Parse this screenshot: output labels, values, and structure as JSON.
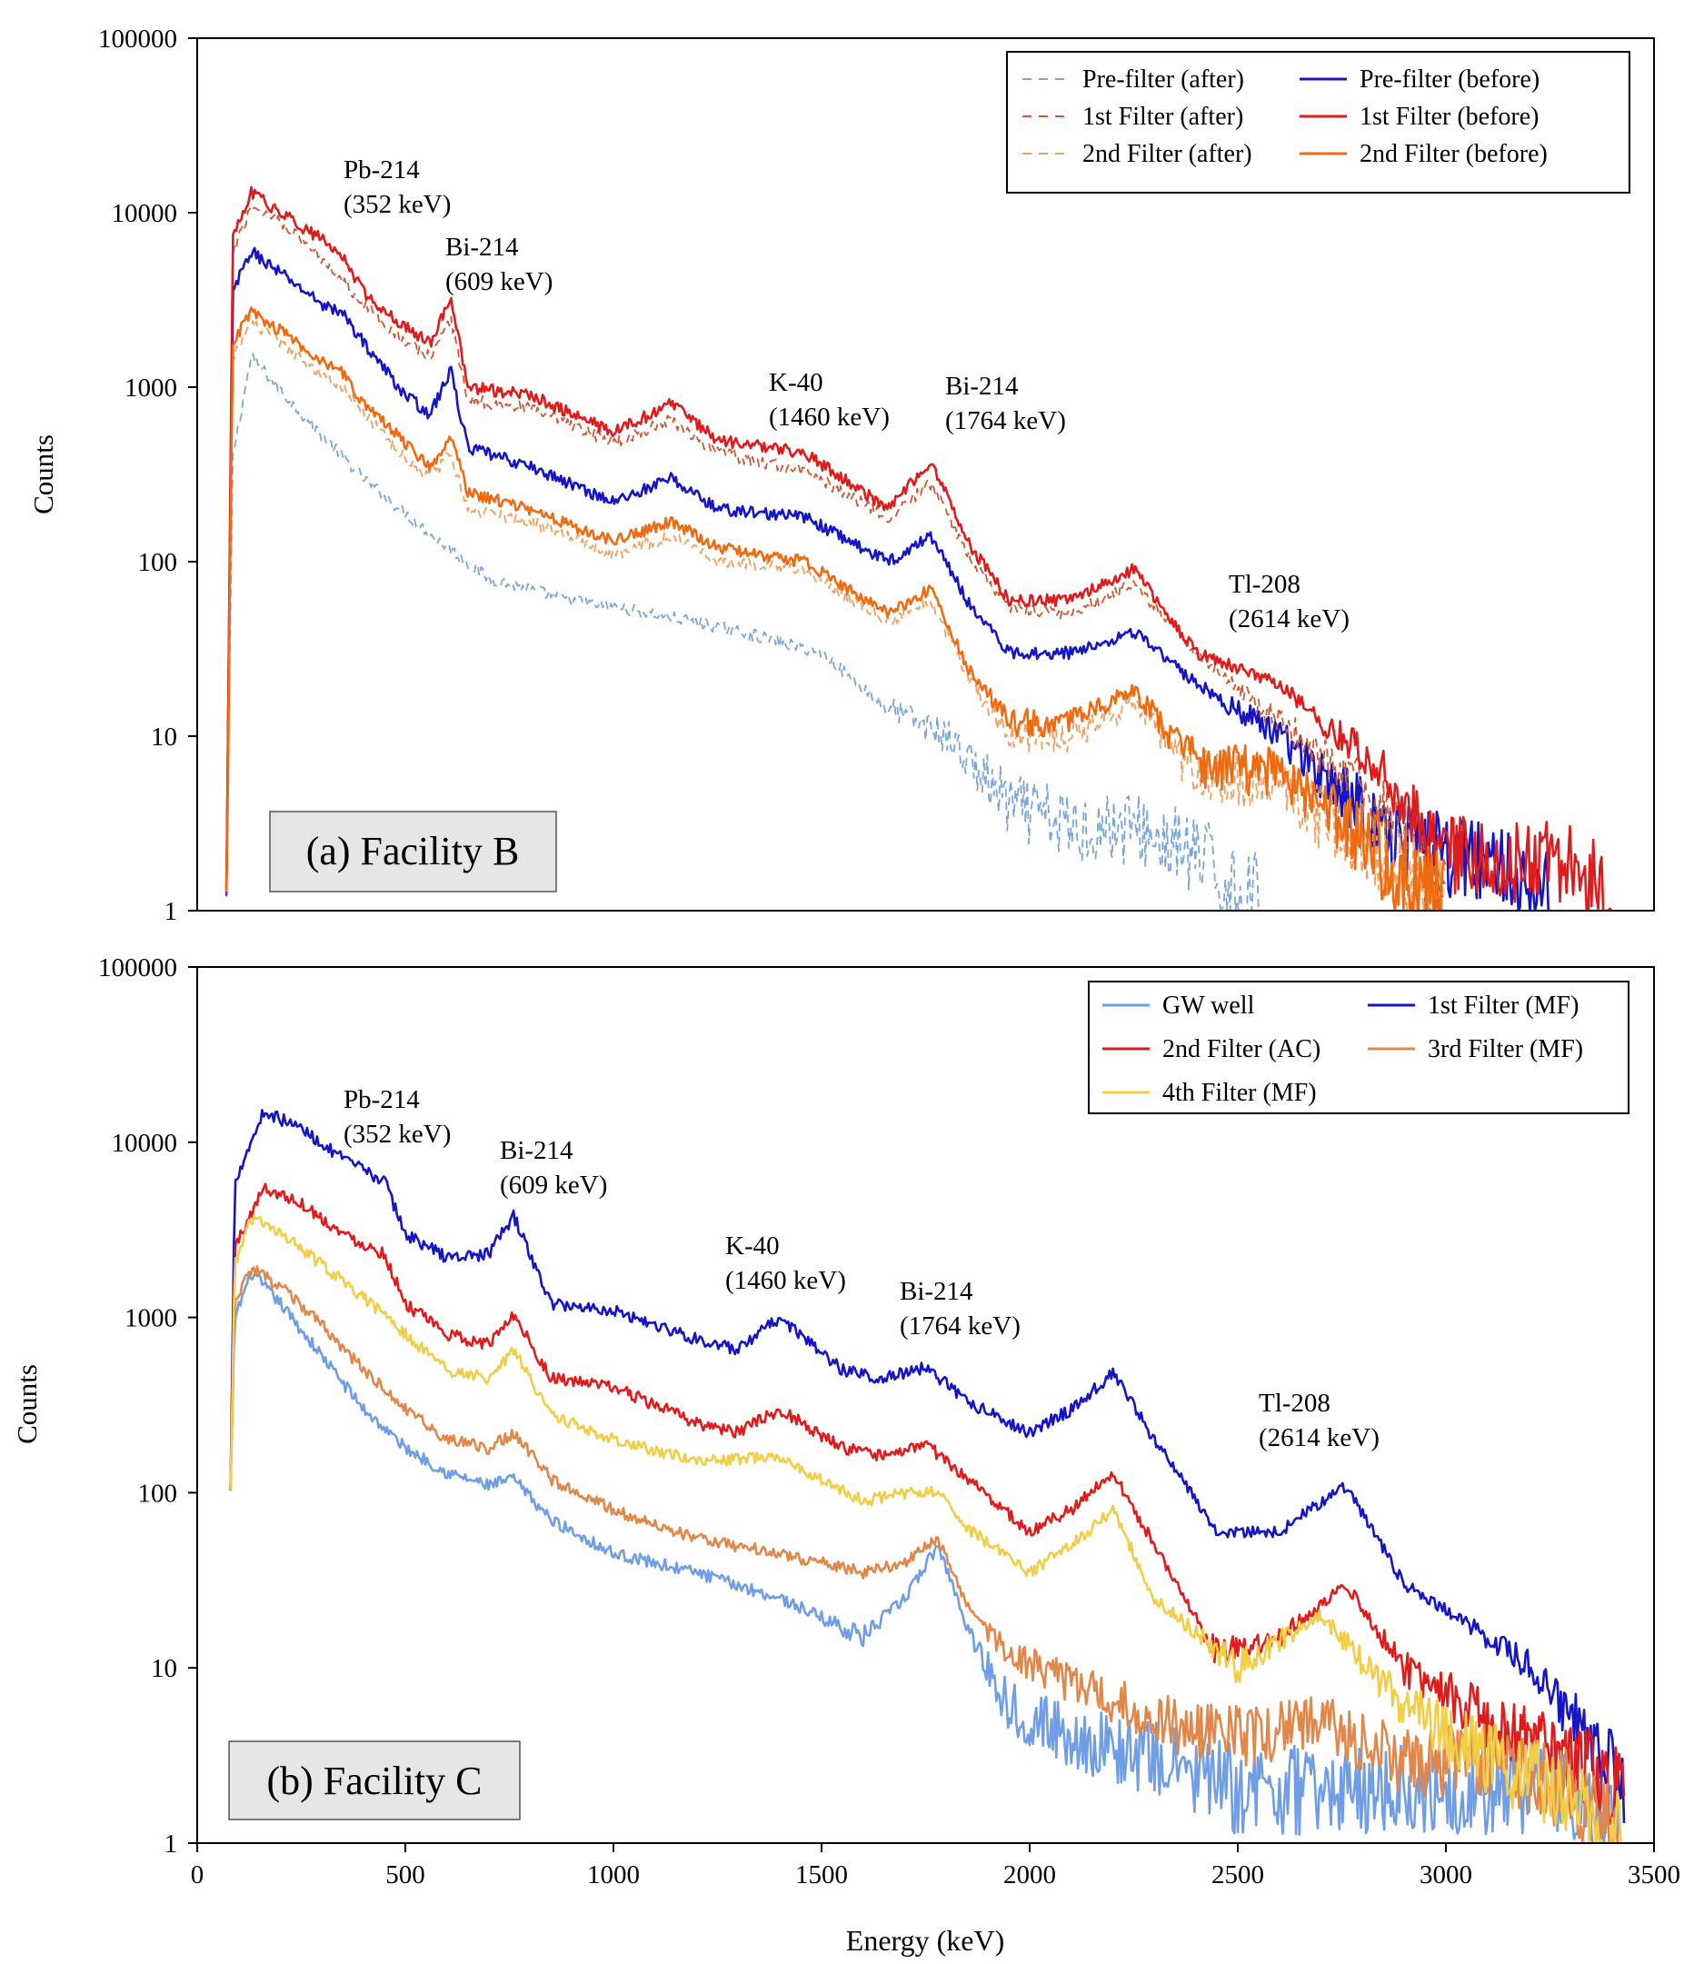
{
  "colors": {
    "prefilter_after": "#7ba6dc",
    "prefilter_before": "#1515c8",
    "filter1_after": "#c85a36",
    "filter1_before": "#e01b1b",
    "filter2_after": "#f0a060",
    "filter2_before": "#f06a10",
    "gw_well": "#6f9ee6",
    "filter1_mf": "#1515c8",
    "filter2_ac": "#e01b1b",
    "filter3_mf": "#e2874a",
    "filter4_mf": "#f2cd46"
  },
  "chart_data": [
    {
      "type": "line",
      "panel_label": "(a) Facility B",
      "xlabel": "",
      "ylabel": "Counts",
      "yscale": "log",
      "xlim": [
        0,
        3500
      ],
      "ylim": [
        1,
        100000
      ],
      "x_ticks": [],
      "y_ticks": [
        "1",
        "10",
        "100",
        "1000",
        "10000",
        "100000"
      ],
      "legend_position": "top-right",
      "series": [
        {
          "key": "pre_after",
          "name": "Pre-filter (after)",
          "style": "dashed",
          "color_key": "prefilter_after",
          "x": [
            70,
            85,
            130,
            250,
            400,
            550,
            700,
            900,
            1100,
            1300,
            1500,
            1650,
            1800,
            1950,
            2100,
            2250,
            2400,
            2550
          ],
          "values": [
            1,
            400,
            1500,
            700,
            300,
            150,
            80,
            60,
            50,
            40,
            30,
            15,
            10,
            4,
            3,
            3,
            2,
            1
          ]
        },
        {
          "key": "pre_before",
          "name": "Pre-filter (before)",
          "style": "solid",
          "color_key": "prefilter_before",
          "x": [
            70,
            85,
            130,
            200,
            300,
            352,
            400,
            500,
            560,
            609,
            650,
            800,
            1000,
            1140,
            1250,
            1460,
            1660,
            1764,
            1850,
            1950,
            2100,
            2250,
            2400,
            2600,
            2850,
            3000,
            3150,
            3250
          ],
          "values": [
            1,
            3500,
            6000,
            4500,
            3000,
            2600,
            1800,
            900,
            700,
            1250,
            450,
            350,
            220,
            300,
            200,
            180,
            100,
            140,
            60,
            30,
            30,
            40,
            20,
            10,
            3,
            2,
            2,
            1
          ]
        },
        {
          "key": "f1_after",
          "name": "1st Filter (after)",
          "style": "dashed",
          "color_key": "filter1_after",
          "x": [
            70,
            85,
            130,
            200,
            300,
            352,
            400,
            500,
            560,
            609,
            650,
            800,
            1000,
            1140,
            1250,
            1460,
            1660,
            1764,
            1850,
            1950,
            2100,
            2250,
            2400,
            2600,
            2850,
            3000
          ],
          "values": [
            1,
            6000,
            11000,
            9000,
            5500,
            4000,
            3000,
            1800,
            1500,
            2500,
            850,
            750,
            480,
            650,
            420,
            330,
            180,
            280,
            110,
            55,
            50,
            75,
            30,
            12,
            4,
            1
          ]
        },
        {
          "key": "f1_before",
          "name": "1st Filter (before)",
          "style": "solid",
          "color_key": "filter1_before",
          "x": [
            70,
            85,
            130,
            200,
            300,
            352,
            400,
            500,
            560,
            609,
            650,
            800,
            1000,
            1140,
            1250,
            1460,
            1660,
            1764,
            1850,
            1950,
            2100,
            2250,
            2400,
            2600,
            2850,
            3000,
            3150,
            3300,
            3400
          ],
          "values": [
            1,
            7000,
            13000,
            10000,
            7000,
            5500,
            3500,
            2200,
            1800,
            3300,
            1000,
            900,
            550,
            800,
            500,
            420,
            200,
            380,
            130,
            60,
            60,
            90,
            30,
            20,
            6,
            2,
            2,
            2,
            1
          ]
        },
        {
          "key": "f2_after",
          "name": "2nd Filter (after)",
          "style": "dashed",
          "color_key": "filter2_after",
          "x": [
            70,
            85,
            130,
            200,
            300,
            352,
            400,
            500,
            560,
            609,
            650,
            800,
            1000,
            1140,
            1250,
            1460,
            1660,
            1764,
            1850,
            1950,
            2100,
            2250,
            2400,
            2600,
            2850,
            3000
          ],
          "values": [
            1,
            1500,
            2300,
            1800,
            1200,
            1000,
            700,
            400,
            300,
            420,
            200,
            170,
            110,
            140,
            100,
            90,
            45,
            60,
            22,
            10,
            10,
            15,
            6,
            5,
            2,
            1
          ]
        },
        {
          "key": "f2_before",
          "name": "2nd Filter (before)",
          "style": "solid",
          "color_key": "filter2_before",
          "x": [
            70,
            85,
            130,
            200,
            300,
            352,
            400,
            500,
            560,
            609,
            650,
            800,
            1000,
            1140,
            1250,
            1460,
            1660,
            1764,
            1850,
            1950,
            2100,
            2250,
            2400,
            2600,
            2850,
            3000
          ],
          "values": [
            1,
            1800,
            2700,
            2100,
            1400,
            1200,
            800,
            480,
            350,
            530,
            250,
            200,
            130,
            170,
            120,
            100,
            50,
            70,
            25,
            12,
            12,
            18,
            7,
            6,
            2,
            1
          ]
        }
      ],
      "annotations": [
        {
          "lines": [
            "Pb-214",
            "(352 keV)"
          ],
          "energy": 352,
          "counts": 13000
        },
        {
          "lines": [
            "Bi-214",
            "(609 keV)"
          ],
          "energy": 609,
          "counts": 4300
        },
        {
          "lines": [
            "K-40",
            "(1460 keV)"
          ],
          "energy": 1460,
          "counts": 900
        },
        {
          "lines": [
            "Bi-214",
            "(1764 keV)"
          ],
          "energy": 1764,
          "counts": 750
        },
        {
          "lines": [
            "Tl-208",
            "(2614 keV)"
          ],
          "energy": 2614,
          "counts": 90
        }
      ]
    },
    {
      "type": "line",
      "panel_label": "(b) Facility C",
      "xlabel": "Energy (keV)",
      "ylabel": "Counts",
      "yscale": "log",
      "xlim": [
        0,
        3500
      ],
      "ylim": [
        1,
        100000
      ],
      "x_ticks": [
        "0",
        "500",
        "1000",
        "1500",
        "2000",
        "2500",
        "3000",
        "3500"
      ],
      "y_ticks": [
        "1",
        "10",
        "100",
        "1000",
        "10000",
        "100000"
      ],
      "legend_position": "top-right",
      "series": [
        {
          "key": "gw",
          "name": "GW well",
          "style": "solid",
          "color_key": "gw_well",
          "x": [
            80,
            90,
            130,
            200,
            300,
            400,
            500,
            600,
            700,
            760,
            850,
            1000,
            1200,
            1400,
            1600,
            1700,
            1780,
            1860,
            1950,
            2100,
            2300,
            2500,
            2700,
            2900,
            3100,
            3300,
            3420
          ],
          "values": [
            100,
            1000,
            1800,
            1200,
            600,
            300,
            180,
            130,
            110,
            120,
            70,
            45,
            35,
            25,
            15,
            25,
            50,
            15,
            6,
            4,
            3,
            2,
            2,
            2,
            2,
            2,
            1
          ]
        },
        {
          "key": "f1",
          "name": "1st Filter (MF)",
          "style": "solid",
          "color_key": "filter1_mf",
          "x": [
            80,
            90,
            160,
            250,
            350,
            450,
            500,
            600,
            700,
            760,
            850,
            1000,
            1200,
            1300,
            1400,
            1550,
            1650,
            1750,
            1850,
            2000,
            2100,
            2200,
            2300,
            2450,
            2600,
            2760,
            2900,
            3050,
            3200,
            3350,
            3430
          ],
          "values": [
            100,
            6000,
            15000,
            12000,
            8000,
            6000,
            3000,
            2200,
            2300,
            3800,
            1200,
            1100,
            750,
            650,
            1000,
            500,
            450,
            520,
            330,
            220,
            300,
            480,
            200,
            60,
            60,
            110,
            30,
            18,
            10,
            4,
            2
          ]
        },
        {
          "key": "f2",
          "name": "2nd Filter (AC)",
          "style": "solid",
          "color_key": "filter2_ac",
          "x": [
            80,
            90,
            160,
            250,
            350,
            450,
            500,
            600,
            700,
            760,
            850,
            1000,
            1200,
            1300,
            1400,
            1550,
            1650,
            1750,
            1850,
            2000,
            2100,
            2200,
            2300,
            2450,
            2600,
            2760,
            2900,
            3100,
            3300,
            3430
          ],
          "values": [
            100,
            2500,
            5500,
            4500,
            3000,
            2300,
            1200,
            800,
            700,
            1050,
            450,
            400,
            250,
            220,
            300,
            180,
            160,
            190,
            120,
            60,
            80,
            130,
            50,
            12,
            15,
            30,
            10,
            5,
            3,
            2
          ]
        },
        {
          "key": "f3",
          "name": "3rd Filter (MF)",
          "style": "solid",
          "color_key": "filter3_mf",
          "x": [
            80,
            90,
            130,
            200,
            300,
            400,
            500,
            600,
            700,
            760,
            850,
            1000,
            1200,
            1400,
            1600,
            1700,
            1780,
            1860,
            1950,
            2100,
            2300,
            2500,
            2700,
            2900,
            3100,
            3300,
            3420
          ],
          "values": [
            100,
            1200,
            1900,
            1500,
            900,
            500,
            300,
            200,
            180,
            220,
            120,
            80,
            55,
            45,
            35,
            40,
            55,
            20,
            12,
            8,
            5,
            4,
            5,
            3,
            3,
            2,
            1
          ]
        },
        {
          "key": "f4",
          "name": "4th Filter (MF)",
          "style": "solid",
          "color_key": "filter4_mf",
          "x": [
            80,
            90,
            130,
            200,
            300,
            400,
            500,
            600,
            700,
            760,
            850,
            1000,
            1200,
            1400,
            1600,
            1700,
            1780,
            1860,
            2000,
            2100,
            2200,
            2300,
            2500,
            2700,
            2900,
            3100,
            3300,
            3420
          ],
          "values": [
            100,
            2000,
            3700,
            3000,
            2000,
            1300,
            800,
            500,
            450,
            650,
            280,
            200,
            150,
            160,
            90,
            100,
            100,
            60,
            35,
            50,
            80,
            25,
            10,
            20,
            6,
            3,
            2,
            1
          ]
        }
      ],
      "annotations": [
        {
          "lines": [
            "Pb-214",
            "(352 keV)"
          ],
          "energy": 352,
          "counts": 15000
        },
        {
          "lines": [
            "Bi-214",
            "(609 keV)"
          ],
          "energy": 609,
          "counts": 4300
        },
        {
          "lines": [
            "K-40",
            "(1460 keV)"
          ],
          "energy": 1460,
          "counts": 1100
        },
        {
          "lines": [
            "Bi-214",
            "(1764 keV)"
          ],
          "energy": 1764,
          "counts": 550
        },
        {
          "lines": [
            "Tl-208",
            "(2614 keV)"
          ],
          "energy": 2614,
          "counts": 130
        }
      ]
    }
  ]
}
